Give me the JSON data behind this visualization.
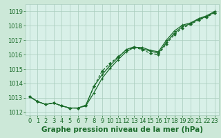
{
  "background_color": "#cce8d8",
  "plot_bg_color": "#d8f0e8",
  "grid_color": "#a8ccbc",
  "line_color": "#1a6b2a",
  "xlabel": "Graphe pression niveau de la mer (hPa)",
  "xlabel_fontsize": 7.5,
  "tick_fontsize": 6,
  "ylim": [
    1011.8,
    1019.5
  ],
  "xlim": [
    -0.5,
    23.5
  ],
  "yticks": [
    1012,
    1013,
    1014,
    1015,
    1016,
    1017,
    1018,
    1019
  ],
  "xticks": [
    0,
    1,
    2,
    3,
    4,
    5,
    6,
    7,
    8,
    9,
    10,
    11,
    12,
    13,
    14,
    15,
    16,
    17,
    18,
    19,
    20,
    21,
    22,
    23
  ],
  "line1_x": [
    0,
    1,
    2,
    3,
    4,
    5,
    6,
    7,
    8,
    9,
    10,
    11,
    12,
    13,
    14,
    15,
    16,
    17,
    18,
    19,
    20,
    21,
    22,
    23
  ],
  "line1_y": [
    1013.1,
    1012.75,
    1012.55,
    1012.65,
    1012.45,
    1012.3,
    1012.3,
    1012.45,
    1013.35,
    1014.35,
    1015.05,
    1015.65,
    1016.2,
    1016.5,
    1016.5,
    1016.3,
    1016.2,
    1017.0,
    1017.65,
    1018.05,
    1018.2,
    1018.5,
    1018.7,
    1019.0
  ],
  "line2_x": [
    0,
    1,
    2,
    3,
    4,
    5,
    6,
    7,
    8,
    9,
    10,
    11,
    12,
    13,
    14,
    15,
    16,
    17,
    18,
    19,
    20,
    21,
    22,
    23
  ],
  "line2_y": [
    1013.1,
    1012.75,
    1012.55,
    1012.65,
    1012.45,
    1012.3,
    1012.3,
    1012.5,
    1013.8,
    1014.6,
    1015.25,
    1015.8,
    1016.35,
    1016.55,
    1016.4,
    1016.25,
    1016.1,
    1016.85,
    1017.5,
    1017.95,
    1018.15,
    1018.45,
    1018.65,
    1018.95
  ],
  "line3_x": [
    0,
    1,
    2,
    3,
    4,
    5,
    6,
    7,
    8,
    9,
    10,
    11,
    12,
    13,
    14,
    15,
    16,
    17,
    18,
    19,
    20,
    21,
    22,
    23
  ],
  "line3_y": [
    1013.1,
    1012.75,
    1012.55,
    1012.65,
    1012.45,
    1012.3,
    1012.3,
    1012.45,
    1013.8,
    1014.85,
    1015.4,
    1015.85,
    1016.3,
    1016.5,
    1016.35,
    1016.1,
    1016.0,
    1016.75,
    1017.4,
    1017.85,
    1018.1,
    1018.4,
    1018.6,
    1018.9
  ]
}
